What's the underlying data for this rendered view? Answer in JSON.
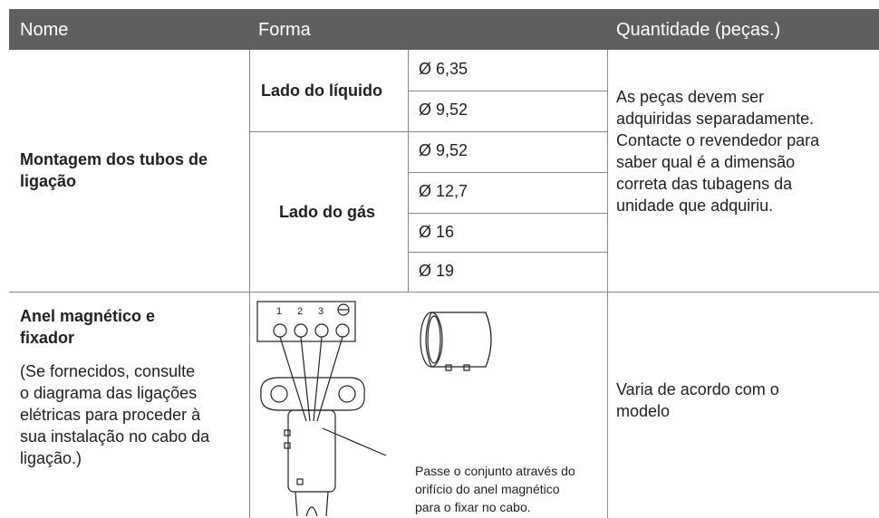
{
  "header": [
    "Nome",
    "Forma",
    "Quantidade (peças.)"
  ],
  "rows": [
    {
      "name": [
        "Montagem dos tubos de",
        "ligação"
      ],
      "shapes": [
        {
          "label": "Lado do líquido",
          "sizes": [
            "Ø 6,35",
            "Ø 9,52"
          ]
        },
        {
          "label": "Lado do gás",
          "sizes": [
            "Ø 9,52",
            "Ø 12,7",
            "Ø 16",
            "Ø 19"
          ]
        }
      ],
      "quantity": [
        "As peças devem ser",
        "adquiridas separadamente.",
        "Contacte o revendedor para",
        "saber qual é a dimensão",
        "correta das tubagens da",
        "unidade que adquiriu."
      ]
    },
    {
      "name": [
        "Anel magnético e",
        "fixador"
      ],
      "note": [
        "(Se fornecidos, consulte",
        "o diagrama das ligações",
        "elétricas para proceder à",
        "sua instalação no cabo da",
        "ligação.)"
      ],
      "terminals": [
        "1",
        "2",
        "3"
      ],
      "caption": [
        "Passe o conjunto através do",
        "orifício do anel magnético",
        "para o fixar no cabo."
      ],
      "quantity": [
        "Varia de acordo com o",
        "modelo"
      ]
    }
  ]
}
